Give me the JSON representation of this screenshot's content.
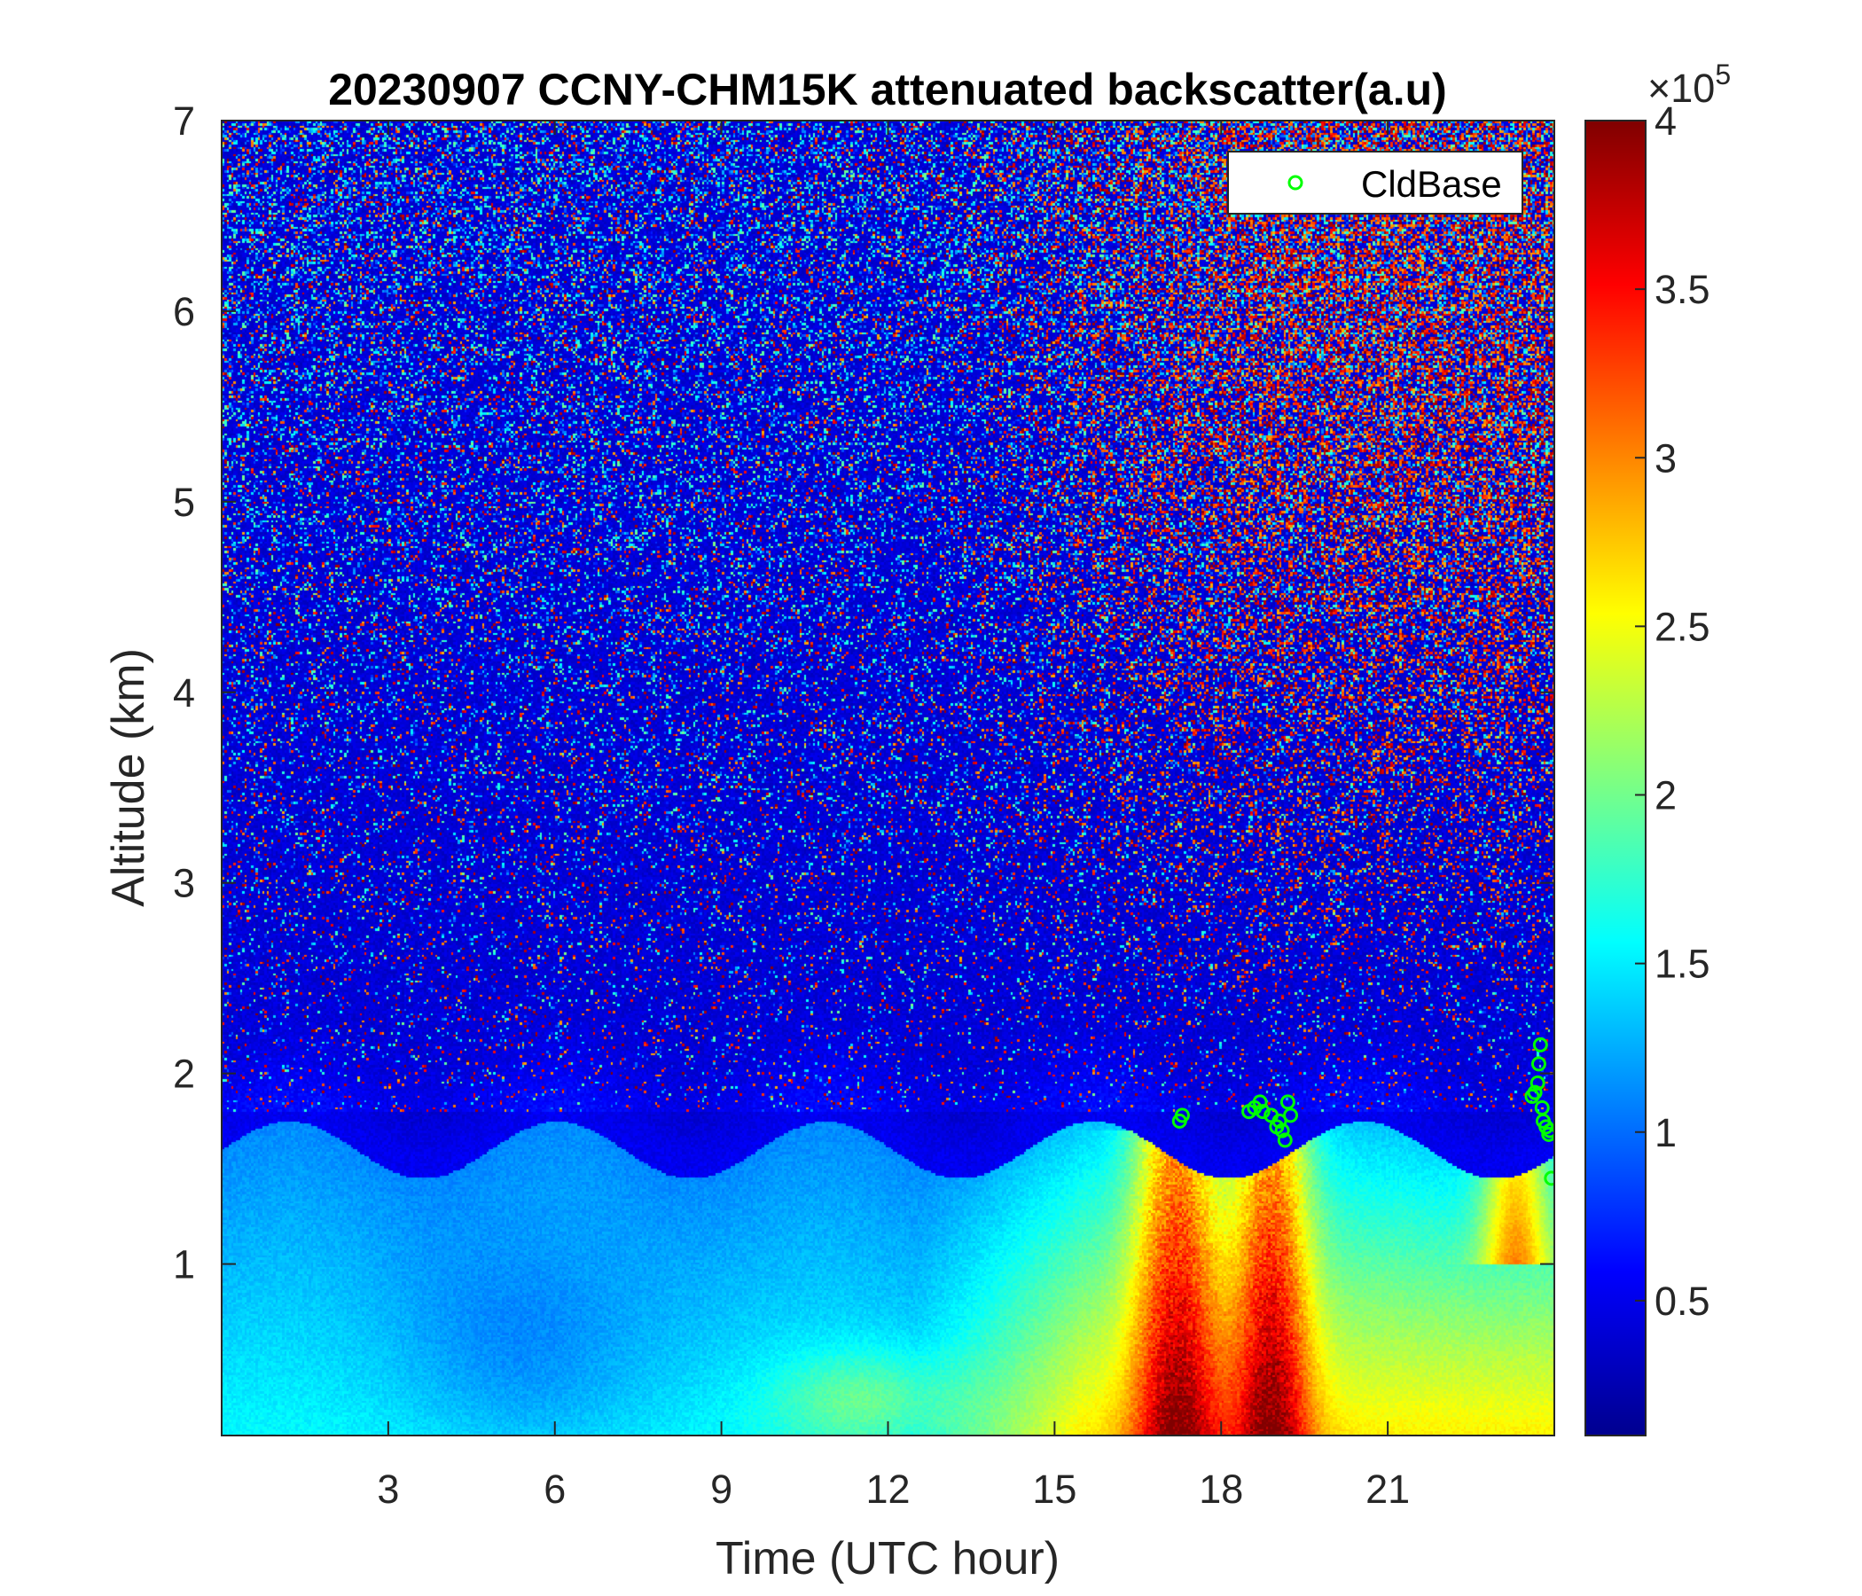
{
  "chart_data": {
    "type": "heatmap",
    "title": "20230907 CCNY-CHM15K attenuated backscatter(a.u)",
    "xlabel": "Time (UTC hour)",
    "ylabel": "Altitude (km)",
    "xlim": [
      0,
      24
    ],
    "ylim": [
      0.1,
      7
    ],
    "x_ticks": [
      3,
      6,
      9,
      12,
      15,
      18,
      21
    ],
    "x_tick_labels": [
      "3",
      "6",
      "9",
      "12",
      "15",
      "18",
      "21"
    ],
    "y_ticks": [
      1,
      2,
      3,
      4,
      5,
      6,
      7
    ],
    "y_tick_labels": [
      "1",
      "2",
      "3",
      "4",
      "5",
      "6",
      "7"
    ],
    "grid": false,
    "colormap": "jet",
    "colorbar": {
      "clim": [
        10000,
        400000
      ],
      "ticks": [
        50000,
        100000,
        150000,
        200000,
        250000,
        300000,
        350000,
        400000
      ],
      "tick_labels": [
        "0.5",
        "1",
        "1.5",
        "2",
        "2.5",
        "3",
        "3.5",
        "4"
      ],
      "exponent_label": "×10",
      "exponent_power": "5"
    },
    "legend": {
      "placement": "top-right",
      "entries": [
        "CldBase"
      ]
    },
    "cloud_base": {
      "name": "CldBase",
      "color": "#00ff00",
      "marker": "circle",
      "points": [
        [
          17.25,
          1.75
        ],
        [
          17.3,
          1.78
        ],
        [
          18.5,
          1.8
        ],
        [
          18.6,
          1.82
        ],
        [
          18.7,
          1.85
        ],
        [
          18.75,
          1.8
        ],
        [
          18.9,
          1.78
        ],
        [
          19.0,
          1.72
        ],
        [
          19.05,
          1.75
        ],
        [
          19.1,
          1.7
        ],
        [
          19.15,
          1.65
        ],
        [
          19.2,
          1.85
        ],
        [
          19.25,
          1.78
        ],
        [
          23.6,
          1.88
        ],
        [
          23.65,
          1.9
        ],
        [
          23.7,
          1.95
        ],
        [
          23.72,
          2.05
        ],
        [
          23.75,
          2.15
        ],
        [
          23.78,
          1.82
        ],
        [
          23.8,
          1.75
        ],
        [
          23.85,
          1.72
        ],
        [
          23.9,
          1.68
        ],
        [
          23.92,
          1.7
        ],
        [
          23.95,
          1.45
        ]
      ]
    }
  }
}
